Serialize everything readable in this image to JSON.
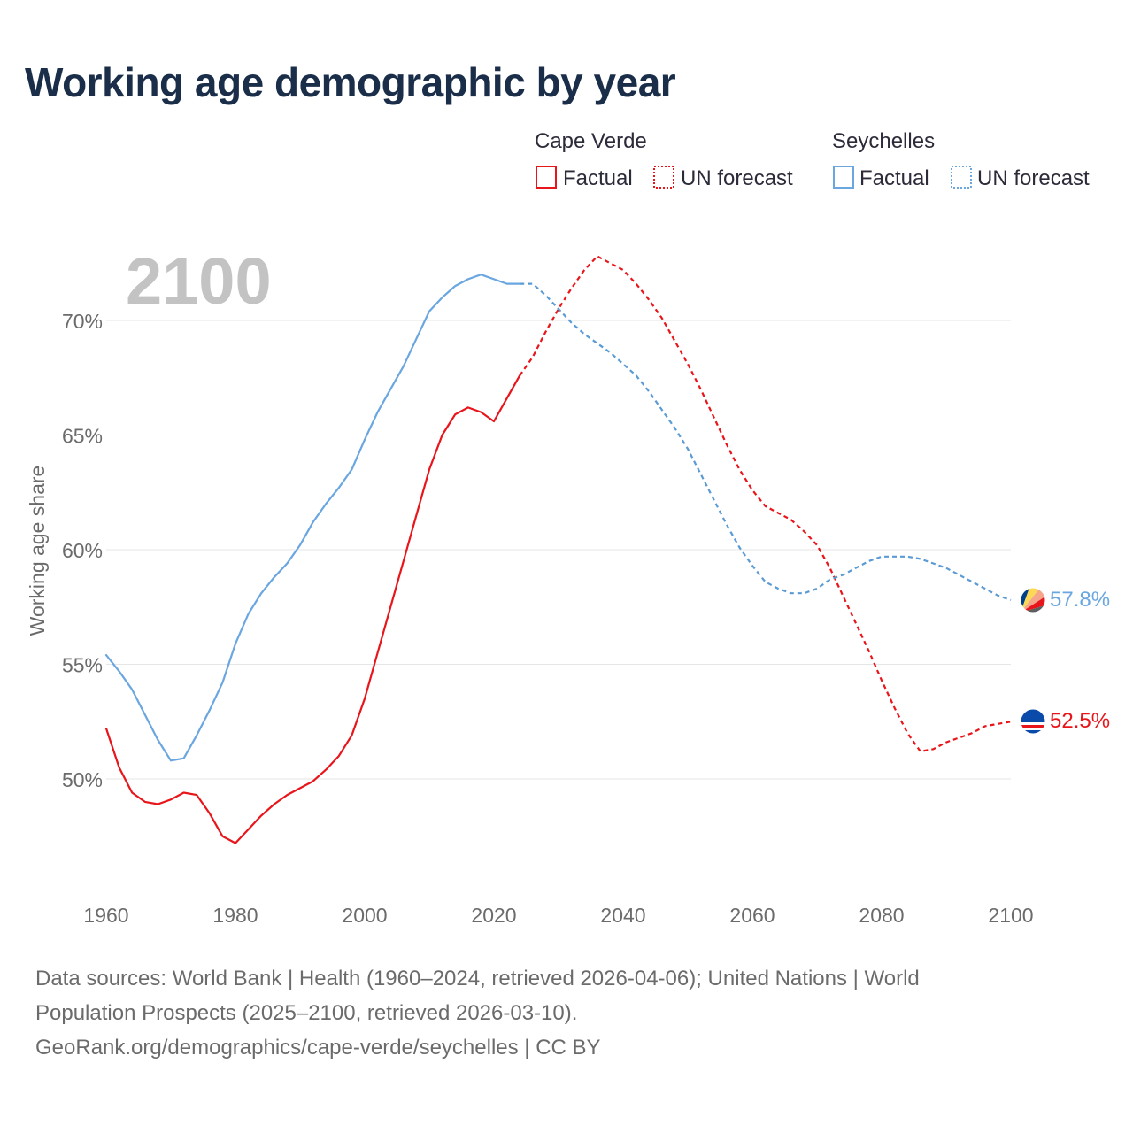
{
  "title": "Working age demographic by year",
  "year_watermark": "2100",
  "legend": {
    "groups": [
      {
        "name": "Cape Verde",
        "color": "#e8161b",
        "factual_label": "Factual",
        "forecast_label": "UN forecast"
      },
      {
        "name": "Seychelles",
        "color": "#6aa6e0",
        "forecast_color": "#5b9bd5",
        "factual_label": "Factual",
        "forecast_label": "UN forecast"
      }
    ]
  },
  "footer": {
    "line1": "Data sources: World Bank | Health (1960–2024, retrieved 2026-04-06); United Nations | World",
    "line2": "Population Prospects (2025–2100, retrieved 2026-03-10).",
    "line3": "GeoRank.org/demographics/cape-verde/seychelles | CC BY"
  },
  "end_labels": {
    "seychelles": "57.8%",
    "cape_verde": "52.5%"
  },
  "chart_data": {
    "type": "line",
    "title": "Working age demographic by year",
    "xlabel": "",
    "ylabel": "Working age share",
    "xlim": [
      1960,
      2100
    ],
    "ylim": [
      45,
      73
    ],
    "x_ticks": [
      1960,
      1980,
      2000,
      2020,
      2040,
      2060,
      2080,
      2100
    ],
    "x_tick_labels": [
      "1960",
      "1980",
      "2000",
      "2020",
      "2040",
      "2060",
      "2080",
      "2100"
    ],
    "y_ticks": [
      50,
      55,
      60,
      65,
      70
    ],
    "y_tick_labels": [
      "50%",
      "55%",
      "60%",
      "65%",
      "70%"
    ],
    "grid": "horizontal",
    "factual_end_year": 2024,
    "series": [
      {
        "name": "Cape Verde",
        "color": "#e8161b",
        "points": [
          [
            1960,
            52.2
          ],
          [
            1962,
            50.5
          ],
          [
            1964,
            49.4
          ],
          [
            1966,
            49.0
          ],
          [
            1968,
            48.9
          ],
          [
            1970,
            49.1
          ],
          [
            1972,
            49.4
          ],
          [
            1974,
            49.3
          ],
          [
            1976,
            48.5
          ],
          [
            1978,
            47.5
          ],
          [
            1980,
            47.2
          ],
          [
            1982,
            47.8
          ],
          [
            1984,
            48.4
          ],
          [
            1986,
            48.9
          ],
          [
            1988,
            49.3
          ],
          [
            1990,
            49.6
          ],
          [
            1992,
            49.9
          ],
          [
            1994,
            50.4
          ],
          [
            1996,
            51.0
          ],
          [
            1998,
            51.9
          ],
          [
            2000,
            53.5
          ],
          [
            2002,
            55.5
          ],
          [
            2004,
            57.5
          ],
          [
            2006,
            59.5
          ],
          [
            2008,
            61.5
          ],
          [
            2010,
            63.5
          ],
          [
            2012,
            65.0
          ],
          [
            2014,
            65.9
          ],
          [
            2016,
            66.2
          ],
          [
            2018,
            66.0
          ],
          [
            2020,
            65.6
          ],
          [
            2022,
            66.6
          ],
          [
            2024,
            67.6
          ],
          [
            2026,
            68.4
          ],
          [
            2028,
            69.5
          ],
          [
            2030,
            70.5
          ],
          [
            2032,
            71.4
          ],
          [
            2034,
            72.2
          ],
          [
            2036,
            72.8
          ],
          [
            2038,
            72.5
          ],
          [
            2040,
            72.2
          ],
          [
            2042,
            71.6
          ],
          [
            2044,
            70.9
          ],
          [
            2046,
            70.1
          ],
          [
            2048,
            69.1
          ],
          [
            2050,
            68.1
          ],
          [
            2052,
            67.0
          ],
          [
            2054,
            65.8
          ],
          [
            2056,
            64.6
          ],
          [
            2058,
            63.5
          ],
          [
            2060,
            62.6
          ],
          [
            2062,
            61.9
          ],
          [
            2064,
            61.6
          ],
          [
            2066,
            61.3
          ],
          [
            2068,
            60.8
          ],
          [
            2070,
            60.2
          ],
          [
            2072,
            59.2
          ],
          [
            2074,
            58.0
          ],
          [
            2076,
            56.8
          ],
          [
            2078,
            55.6
          ],
          [
            2080,
            54.3
          ],
          [
            2082,
            53.1
          ],
          [
            2084,
            52.0
          ],
          [
            2086,
            51.2
          ],
          [
            2088,
            51.3
          ],
          [
            2090,
            51.6
          ],
          [
            2092,
            51.8
          ],
          [
            2094,
            52.0
          ],
          [
            2096,
            52.3
          ],
          [
            2098,
            52.4
          ],
          [
            2100,
            52.5
          ]
        ]
      },
      {
        "name": "Seychelles",
        "color": "#6aa6e0",
        "forecast_color": "#5b9bd5",
        "points": [
          [
            1960,
            55.4
          ],
          [
            1962,
            54.7
          ],
          [
            1964,
            53.9
          ],
          [
            1966,
            52.8
          ],
          [
            1968,
            51.7
          ],
          [
            1970,
            50.8
          ],
          [
            1972,
            50.9
          ],
          [
            1974,
            51.9
          ],
          [
            1976,
            53.0
          ],
          [
            1978,
            54.2
          ],
          [
            1980,
            55.9
          ],
          [
            1982,
            57.2
          ],
          [
            1984,
            58.1
          ],
          [
            1986,
            58.8
          ],
          [
            1988,
            59.4
          ],
          [
            1990,
            60.2
          ],
          [
            1992,
            61.2
          ],
          [
            1994,
            62.0
          ],
          [
            1996,
            62.7
          ],
          [
            1998,
            63.5
          ],
          [
            2000,
            64.8
          ],
          [
            2002,
            66.0
          ],
          [
            2004,
            67.0
          ],
          [
            2006,
            68.0
          ],
          [
            2008,
            69.2
          ],
          [
            2010,
            70.4
          ],
          [
            2012,
            71.0
          ],
          [
            2014,
            71.5
          ],
          [
            2016,
            71.8
          ],
          [
            2018,
            72.0
          ],
          [
            2020,
            71.8
          ],
          [
            2022,
            71.6
          ],
          [
            2024,
            71.6
          ],
          [
            2026,
            71.6
          ],
          [
            2028,
            71.1
          ],
          [
            2030,
            70.5
          ],
          [
            2032,
            69.9
          ],
          [
            2034,
            69.4
          ],
          [
            2036,
            69.0
          ],
          [
            2038,
            68.6
          ],
          [
            2040,
            68.1
          ],
          [
            2042,
            67.6
          ],
          [
            2044,
            66.9
          ],
          [
            2046,
            66.1
          ],
          [
            2048,
            65.3
          ],
          [
            2050,
            64.4
          ],
          [
            2052,
            63.3
          ],
          [
            2054,
            62.2
          ],
          [
            2056,
            61.1
          ],
          [
            2058,
            60.1
          ],
          [
            2060,
            59.3
          ],
          [
            2062,
            58.6
          ],
          [
            2064,
            58.3
          ],
          [
            2066,
            58.1
          ],
          [
            2068,
            58.1
          ],
          [
            2070,
            58.3
          ],
          [
            2072,
            58.7
          ],
          [
            2074,
            58.9
          ],
          [
            2076,
            59.2
          ],
          [
            2078,
            59.5
          ],
          [
            2080,
            59.7
          ],
          [
            2082,
            59.7
          ],
          [
            2084,
            59.7
          ],
          [
            2086,
            59.6
          ],
          [
            2088,
            59.4
          ],
          [
            2090,
            59.2
          ],
          [
            2092,
            58.9
          ],
          [
            2094,
            58.6
          ],
          [
            2096,
            58.3
          ],
          [
            2098,
            58.0
          ],
          [
            2100,
            57.8
          ]
        ]
      }
    ]
  }
}
